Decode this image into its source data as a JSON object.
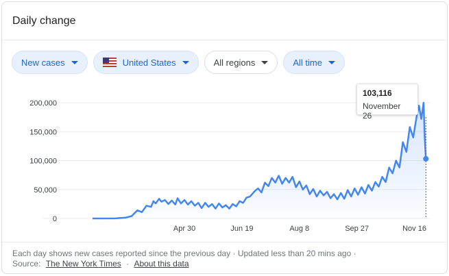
{
  "card": {
    "title": "Daily change"
  },
  "filters": [
    {
      "label": "New cases",
      "style": "active"
    },
    {
      "label": "United States",
      "style": "active",
      "icon": "us-flag-icon"
    },
    {
      "label": "All regions",
      "style": "plain"
    },
    {
      "label": "All time",
      "style": "active"
    }
  ],
  "tooltip": {
    "value": "103,116",
    "date": "November 26"
  },
  "footer": {
    "note": "Each day shows new cases reported since the previous day · Updated less than 20 mins ago ·",
    "source_label": "Source:",
    "source_link": "The New York Times",
    "separator": "·",
    "about_link": "About this data"
  },
  "colors": {
    "line": "#4285f4",
    "chip_active_text": "#1967d2",
    "chip_active_bg": "#e8f0fe"
  },
  "chart_data": {
    "type": "area",
    "title": "",
    "xlabel": "",
    "ylabel": "",
    "ylim": [
      0,
      200000
    ],
    "y_ticks": [
      "0",
      "50,000",
      "100,000",
      "150,000",
      "200,000"
    ],
    "y_tick_values": [
      0,
      50000,
      100000,
      150000,
      200000
    ],
    "x_ticks": [
      {
        "label": "Apr 30",
        "date": "2020-04-30"
      },
      {
        "label": "Jun 19",
        "date": "2020-06-19"
      },
      {
        "label": "Aug 8",
        "date": "2020-08-08"
      },
      {
        "label": "Sep 27",
        "date": "2020-09-27"
      },
      {
        "label": "Nov 16",
        "date": "2020-11-16"
      }
    ],
    "grid": true,
    "series": [
      {
        "points": [
          [
            "2020-02-10",
            0
          ],
          [
            "2020-03-01",
            100
          ],
          [
            "2020-03-10",
            1500
          ],
          [
            "2020-03-15",
            4000
          ],
          [
            "2020-03-20",
            14000
          ],
          [
            "2020-03-24",
            11000
          ],
          [
            "2020-03-28",
            22000
          ],
          [
            "2020-04-01",
            20000
          ],
          [
            "2020-04-03",
            30000
          ],
          [
            "2020-04-05",
            26000
          ],
          [
            "2020-04-08",
            34000
          ],
          [
            "2020-04-10",
            29000
          ],
          [
            "2020-04-13",
            32000
          ],
          [
            "2020-04-16",
            25000
          ],
          [
            "2020-04-19",
            31000
          ],
          [
            "2020-04-22",
            24000
          ],
          [
            "2020-04-24",
            35000
          ],
          [
            "2020-04-27",
            26000
          ],
          [
            "2020-04-30",
            32000
          ],
          [
            "2020-05-03",
            24000
          ],
          [
            "2020-05-06",
            30000
          ],
          [
            "2020-05-09",
            22000
          ],
          [
            "2020-05-12",
            27000
          ],
          [
            "2020-05-15",
            18000
          ],
          [
            "2020-05-18",
            27000
          ],
          [
            "2020-05-21",
            20000
          ],
          [
            "2020-05-24",
            25000
          ],
          [
            "2020-05-27",
            17000
          ],
          [
            "2020-05-30",
            26000
          ],
          [
            "2020-06-02",
            19000
          ],
          [
            "2020-06-05",
            23000
          ],
          [
            "2020-06-08",
            17000
          ],
          [
            "2020-06-11",
            25000
          ],
          [
            "2020-06-14",
            21000
          ],
          [
            "2020-06-17",
            30000
          ],
          [
            "2020-06-20",
            27000
          ],
          [
            "2020-06-23",
            36000
          ],
          [
            "2020-06-26",
            38000
          ],
          [
            "2020-06-30",
            47000
          ],
          [
            "2020-07-03",
            52000
          ],
          [
            "2020-07-06",
            45000
          ],
          [
            "2020-07-09",
            62000
          ],
          [
            "2020-07-12",
            56000
          ],
          [
            "2020-07-15",
            70000
          ],
          [
            "2020-07-18",
            62000
          ],
          [
            "2020-07-21",
            74000
          ],
          [
            "2020-07-24",
            60000
          ],
          [
            "2020-07-27",
            70000
          ],
          [
            "2020-07-30",
            62000
          ],
          [
            "2020-08-02",
            72000
          ],
          [
            "2020-08-05",
            54000
          ],
          [
            "2020-08-08",
            64000
          ],
          [
            "2020-08-11",
            50000
          ],
          [
            "2020-08-14",
            57000
          ],
          [
            "2020-08-17",
            42000
          ],
          [
            "2020-08-20",
            51000
          ],
          [
            "2020-08-23",
            38000
          ],
          [
            "2020-08-26",
            48000
          ],
          [
            "2020-08-29",
            40000
          ],
          [
            "2020-09-01",
            46000
          ],
          [
            "2020-09-04",
            35000
          ],
          [
            "2020-09-07",
            42000
          ],
          [
            "2020-09-10",
            33000
          ],
          [
            "2020-09-13",
            44000
          ],
          [
            "2020-09-16",
            34000
          ],
          [
            "2020-09-19",
            49000
          ],
          [
            "2020-09-22",
            38000
          ],
          [
            "2020-09-25",
            52000
          ],
          [
            "2020-09-28",
            41000
          ],
          [
            "2020-10-01",
            54000
          ],
          [
            "2020-10-04",
            43000
          ],
          [
            "2020-10-07",
            58000
          ],
          [
            "2020-10-10",
            48000
          ],
          [
            "2020-10-13",
            63000
          ],
          [
            "2020-10-16",
            55000
          ],
          [
            "2020-10-19",
            72000
          ],
          [
            "2020-10-22",
            63000
          ],
          [
            "2020-10-25",
            88000
          ],
          [
            "2020-10-28",
            78000
          ],
          [
            "2020-10-31",
            100000
          ],
          [
            "2020-11-03",
            88000
          ],
          [
            "2020-11-06",
            132000
          ],
          [
            "2020-11-09",
            115000
          ],
          [
            "2020-11-12",
            158000
          ],
          [
            "2020-11-15",
            140000
          ],
          [
            "2020-11-18",
            177000
          ],
          [
            "2020-11-20",
            195000
          ],
          [
            "2020-11-22",
            172000
          ],
          [
            "2020-11-24",
            200000
          ],
          [
            "2020-11-25",
            140000
          ],
          [
            "2020-11-26",
            103116
          ]
        ]
      }
    ],
    "highlight": {
      "date": "2020-11-26",
      "value": 103116
    }
  }
}
